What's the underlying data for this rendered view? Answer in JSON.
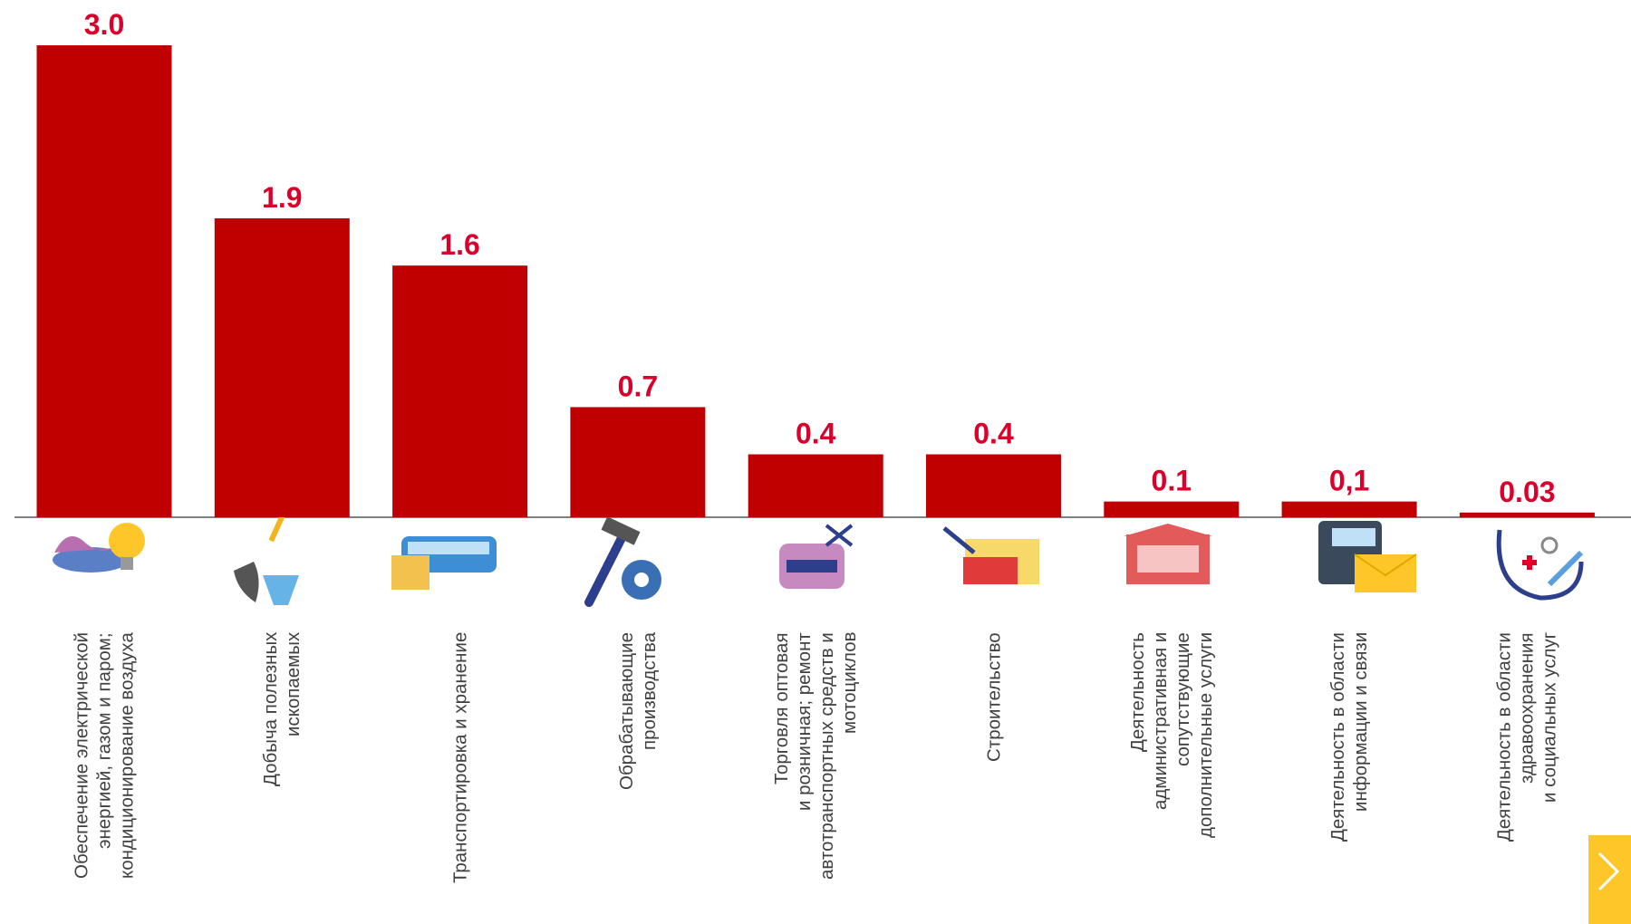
{
  "chart_data": {
    "type": "bar",
    "categories": [
      "Обеспечение электрической\nэнергией, газом и паром;\nкондиционирование воздуха",
      "Добыча полезных\nископаемых",
      "Транспортировка и хранение",
      "Обрабатывающие\nпроизводства",
      "Торговля оптовая\nи розничная; ремонт\nавтотранспортных средств и\nмотоциклов",
      "Строительство",
      "Деятельность\nадминистративная и\nсопутствующие\nдополнительные услуги",
      "Деятельность в области\nинформации и связи",
      "Деятельность в области\nздравоохранения\nи социальных услуг"
    ],
    "values": [
      3.0,
      1.9,
      1.6,
      0.7,
      0.4,
      0.4,
      0.1,
      0.1,
      0.03
    ],
    "value_labels": [
      "3.0",
      "1.9",
      "1.6",
      "0.7",
      "0.4",
      "0.4",
      "0.1",
      "0,1",
      "0.03"
    ],
    "color": "#c00000"
  }
}
